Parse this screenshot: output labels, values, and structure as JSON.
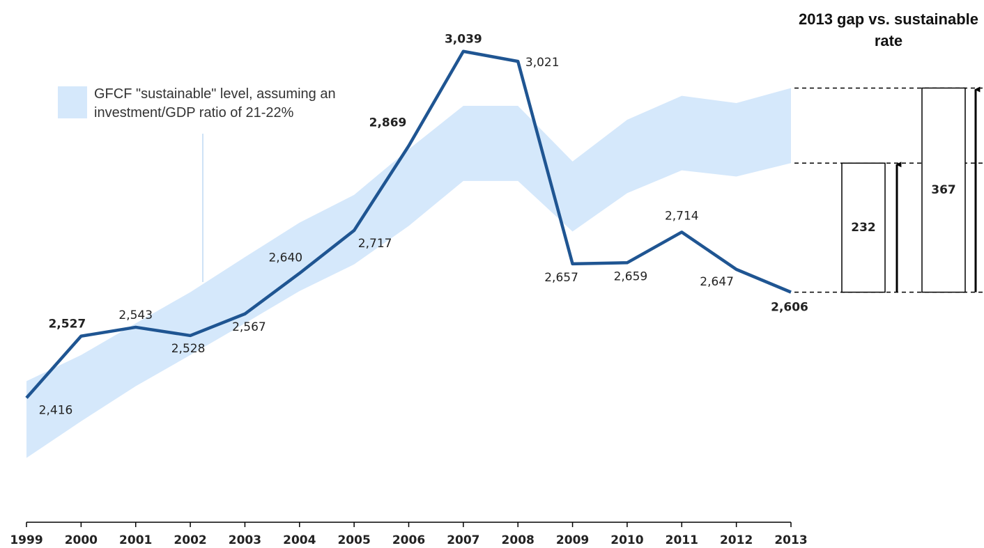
{
  "chart_data": {
    "type": "line",
    "x": [
      1999,
      2000,
      2001,
      2002,
      2003,
      2004,
      2005,
      2006,
      2007,
      2008,
      2009,
      2010,
      2011,
      2012,
      2013
    ],
    "xlim": [
      1999,
      2013
    ],
    "xticks": [
      1999,
      2000,
      2001,
      2002,
      2003,
      2004,
      2005,
      2006,
      2007,
      2008,
      2009,
      2010,
      2011,
      2012,
      2013
    ],
    "ylim": [
      2250,
      3100
    ],
    "series": [
      {
        "name": "GFCF \"sustainable\" level, assuming an investment/GDP ratio of 21-22%",
        "type": "band",
        "color": "#d5e8fb",
        "low": [
          2308,
          2374,
          2437,
          2493,
          2550,
          2608,
          2656,
          2725,
          2806,
          2806,
          2715,
          2784,
          2825,
          2814,
          2838
        ],
        "high": [
          2446,
          2493,
          2550,
          2606,
          2669,
          2731,
          2781,
          2863,
          2941,
          2941,
          2841,
          2916,
          2959,
          2946,
          2973
        ]
      },
      {
        "type": "line",
        "color": "#1f5592",
        "values": [
          2416,
          2527,
          2543,
          2528,
          2567,
          2640,
          2717,
          2869,
          3039,
          3021,
          2657,
          2659,
          2714,
          2647,
          2606
        ],
        "value_labels": [
          "2,416",
          "2,527",
          "2,543",
          "2,528",
          "2,567",
          "2,640",
          "2,717",
          "2,869",
          "3,039",
          "3,021",
          "2,657",
          "2,659",
          "2,714",
          "2,647",
          "2,606"
        ]
      }
    ],
    "gap": {
      "title": "2013 gap vs. sustainable rate",
      "values": [
        232,
        367
      ]
    }
  }
}
